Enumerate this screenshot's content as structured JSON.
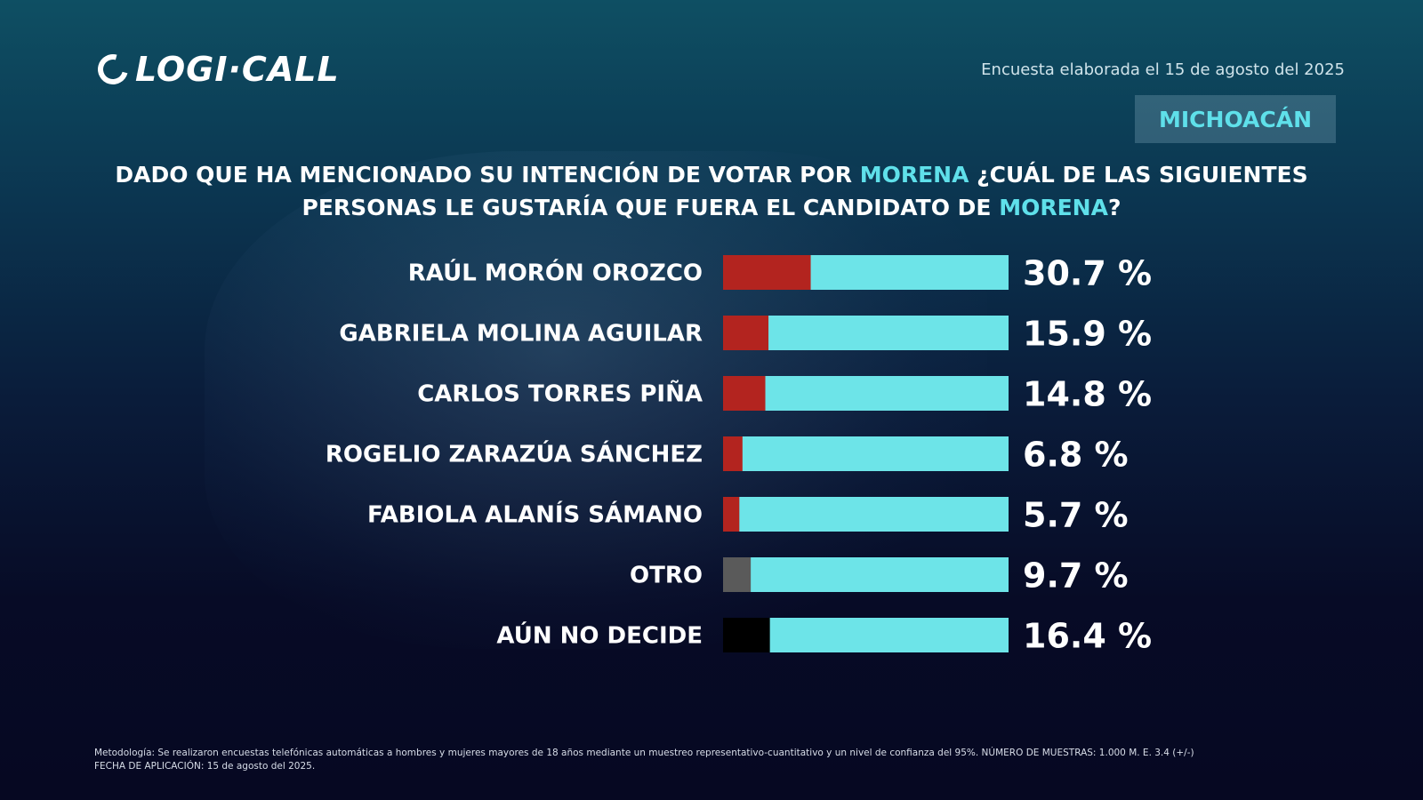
{
  "logo": "LOGI·CALL",
  "header": {
    "date": "Encuesta elaborada el 15 de agosto del 2025",
    "region": "MICHOACÁN"
  },
  "question": {
    "part1": "DADO QUE HA MENCIONADO SU INTENCIÓN DE VOTAR POR ",
    "hl1": "MORENA",
    "part2": " ¿CUÁL DE LAS SIGUIENTES PERSONAS LE GUSTARÍA QUE FUERA EL CANDIDATO DE ",
    "hl2": "MORENA",
    "part3": "?"
  },
  "chart_data": {
    "type": "bar",
    "orientation": "horizontal",
    "xlim": [
      0,
      100
    ],
    "categories": [
      "RAÚL MORÓN OROZCO",
      "GABRIELA MOLINA AGUILAR",
      "CARLOS TORRES PIÑA",
      "ROGELIO ZARAZÚA SÁNCHEZ",
      "FABIOLA ALANÍS SÁMANO",
      "OTRO",
      "AÚN NO DECIDE"
    ],
    "values": [
      30.7,
      15.9,
      14.8,
      6.8,
      5.7,
      9.7,
      16.4
    ],
    "labels": [
      "30.7 %",
      "15.9 %",
      "14.8 %",
      "6.8 %",
      "5.7 %",
      "9.7 %",
      "16.4 %"
    ],
    "colors": [
      "#b3241f",
      "#b3241f",
      "#b3241f",
      "#b3241f",
      "#b3241f",
      "#5a5a5a",
      "#000000"
    ],
    "track_color": "#6de4e8"
  },
  "footer": {
    "line1": "Metodología: Se realizaron encuestas telefónicas automáticas a hombres y mujeres mayores de 18 años mediante un muestreo representativo-cuantitativo y un nivel de confianza del 95%. NÚMERO DE MUESTRAS: 1.000 M. E. 3.4 (+/-)",
    "line2": "FECHA DE APLICACIÓN: 15 de agosto del 2025."
  }
}
